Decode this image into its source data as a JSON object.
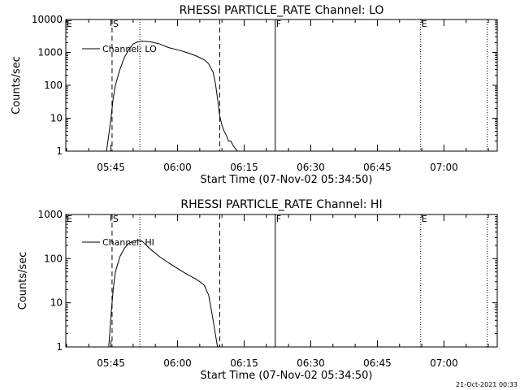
{
  "footer": {
    "timestamp": "21-Oct-2021 00:33"
  },
  "chart_data": [
    {
      "type": "line",
      "title": "RHESSI PARTICLE_RATE Channel: LO",
      "ylabel": "Counts/sec",
      "xlabel": "Start Time (07-Nov-02 05:34:50)",
      "y_scale": "log",
      "ylim": [
        1,
        10000
      ],
      "xlim": [
        "05:34:50",
        "07:12:00"
      ],
      "y_ticks": [
        1,
        10,
        100,
        1000,
        10000
      ],
      "y_tick_labels": [
        "1",
        "10",
        "100",
        "1000",
        "10000"
      ],
      "x_ticks": [
        "05:45",
        "06:00",
        "06:15",
        "06:30",
        "06:45",
        "07:00"
      ],
      "legend": {
        "position": "top-left",
        "entries": [
          "Channel: LO"
        ]
      },
      "markers": [
        {
          "label": "E",
          "time": "05:34:50",
          "style": "dotted"
        },
        {
          "label": "S",
          "time": "05:45:15",
          "style": "dashed"
        },
        {
          "label": "",
          "time": "05:51:30",
          "style": "dotted"
        },
        {
          "label": "",
          "time": "06:09:30",
          "style": "dashed"
        },
        {
          "label": "F",
          "time": "06:22:00",
          "style": "solid"
        },
        {
          "label": "E",
          "time": "06:54:45",
          "style": "dotted"
        },
        {
          "label": "",
          "time": "07:09:45",
          "style": "dotted"
        }
      ],
      "series": [
        {
          "name": "Channel: LO",
          "x": [
            "05:44:00",
            "05:44:30",
            "05:45:00",
            "05:45:30",
            "05:46:00",
            "05:47:00",
            "05:48:00",
            "05:49:00",
            "05:50:00",
            "05:51:00",
            "05:52:00",
            "05:54:00",
            "05:56:00",
            "05:58:00",
            "06:00:00",
            "06:02:00",
            "06:04:00",
            "06:06:00",
            "06:07:00",
            "06:08:00",
            "06:08:30",
            "06:09:00",
            "06:09:30",
            "06:10:00",
            "06:10:30",
            "06:11:00",
            "06:11:30",
            "06:12:00",
            "06:12:30",
            "06:13:00",
            "06:13:30"
          ],
          "values": [
            1,
            3,
            10,
            40,
            100,
            300,
            700,
            1200,
            1800,
            2100,
            2200,
            2100,
            1800,
            1400,
            1200,
            1000,
            800,
            600,
            450,
            250,
            120,
            40,
            12,
            6,
            4,
            3,
            2,
            2,
            1.5,
            1.2,
            1
          ]
        }
      ]
    },
    {
      "type": "line",
      "title": "RHESSI PARTICLE_RATE Channel: HI",
      "ylabel": "Counts/sec",
      "xlabel": "Start Time (07-Nov-02 05:34:50)",
      "y_scale": "log",
      "ylim": [
        1,
        1000
      ],
      "xlim": [
        "05:34:50",
        "07:12:00"
      ],
      "y_ticks": [
        1,
        10,
        100,
        1000
      ],
      "y_tick_labels": [
        "1",
        "10",
        "100",
        "1000"
      ],
      "x_ticks": [
        "05:45",
        "06:00",
        "06:15",
        "06:30",
        "06:45",
        "07:00"
      ],
      "legend": {
        "position": "top-left",
        "entries": [
          "Channel: HI"
        ]
      },
      "markers": [
        {
          "label": "E",
          "time": "05:34:50",
          "style": "dotted"
        },
        {
          "label": "S",
          "time": "05:45:15",
          "style": "dashed"
        },
        {
          "label": "",
          "time": "05:51:30",
          "style": "dotted"
        },
        {
          "label": "",
          "time": "06:09:30",
          "style": "dashed"
        },
        {
          "label": "F",
          "time": "06:22:00",
          "style": "solid"
        },
        {
          "label": "E",
          "time": "06:54:45",
          "style": "dotted"
        },
        {
          "label": "",
          "time": "07:09:45",
          "style": "dotted"
        }
      ],
      "series": [
        {
          "name": "Channel: HI",
          "x": [
            "05:44:30",
            "05:45:00",
            "05:45:30",
            "05:46:00",
            "05:47:00",
            "05:48:00",
            "05:49:00",
            "05:50:00",
            "05:51:00",
            "05:52:00",
            "05:53:00",
            "05:54:00",
            "05:56:00",
            "05:58:00",
            "06:00:00",
            "06:02:00",
            "06:04:00",
            "06:05:00",
            "06:06:00",
            "06:07:00",
            "06:07:30",
            "06:08:00",
            "06:08:30",
            "06:09:00"
          ],
          "values": [
            1,
            5,
            20,
            50,
            110,
            170,
            220,
            250,
            260,
            250,
            200,
            160,
            110,
            80,
            60,
            45,
            35,
            30,
            25,
            15,
            8,
            4,
            2,
            1
          ]
        }
      ]
    }
  ]
}
